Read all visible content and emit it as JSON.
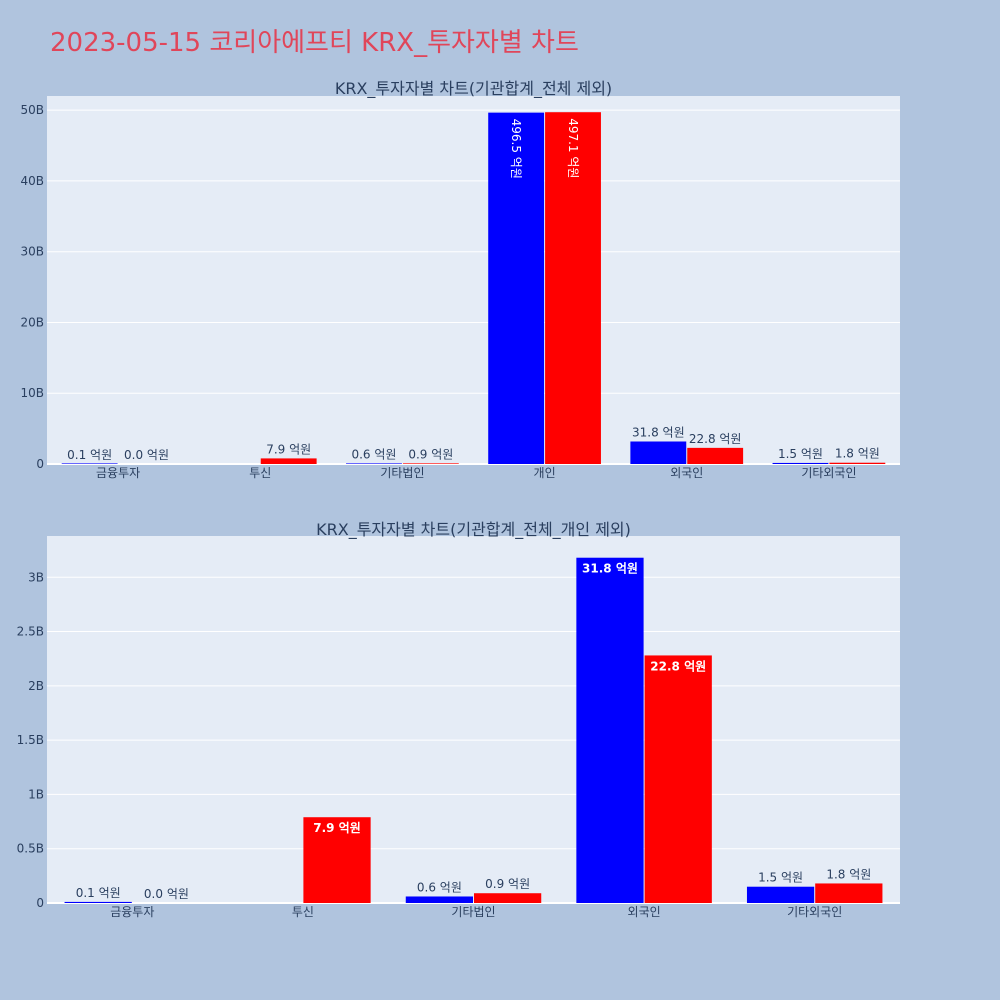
{
  "page_title": "2023-05-15 코리아에프티 KRX_투자자별 차트",
  "colors": {
    "background": "#b0c4de",
    "plot_bg": "#e5ecf6",
    "title_color": "#e0465a",
    "series_a": "#0000ff",
    "series_b": "#ff0000",
    "text": "#2a3f5f",
    "grid": "#ffffff"
  },
  "chart_data": [
    {
      "type": "bar",
      "title": "KRX_투자자별 차트(기관합계_전체 제외)",
      "categories": [
        "금융투자",
        "투신",
        "기타법인",
        "개인",
        "외국인",
        "기타외국인"
      ],
      "series": [
        {
          "values": [
            10000000,
            0,
            60000000,
            49650000000,
            3180000000,
            150000000
          ],
          "labels": [
            "0.1 억원",
            "",
            "0.6 억원",
            "496.5 억원",
            "31.8 억원",
            "1.5 억원"
          ]
        },
        {
          "values": [
            0,
            790000000,
            90000000,
            49710000000,
            2280000000,
            180000000
          ],
          "labels": [
            "0.0 억원",
            "7.9 억원",
            "0.9 억원",
            "497.1 억원",
            "22.8 억원",
            "1.8 억원"
          ]
        }
      ],
      "ylim": [
        0,
        52000000000
      ],
      "yticks": [
        0,
        10000000000,
        20000000000,
        30000000000,
        40000000000,
        50000000000
      ],
      "ytick_labels": [
        "0",
        "10B",
        "20B",
        "30B",
        "40B",
        "50B"
      ],
      "grid": true
    },
    {
      "type": "bar",
      "title": "KRX_투자자별 차트(기관합계_전체_개인 제외)",
      "categories": [
        "금융투자",
        "투신",
        "기타법인",
        "외국인",
        "기타외국인"
      ],
      "series": [
        {
          "values": [
            10000000,
            0,
            60000000,
            3180000000,
            150000000
          ],
          "labels": [
            "0.1 억원",
            "",
            "0.6 억원",
            "31.8 억원",
            "1.5 억원"
          ]
        },
        {
          "values": [
            0,
            790000000,
            90000000,
            2280000000,
            180000000
          ],
          "labels": [
            "0.0 억원",
            "7.9 억원",
            "0.9 억원",
            "22.8 억원",
            "1.8 억원"
          ]
        }
      ],
      "ylim": [
        0,
        3380000000
      ],
      "yticks": [
        0,
        500000000,
        1000000000,
        1500000000,
        2000000000,
        2500000000,
        3000000000
      ],
      "ytick_labels": [
        "0",
        "0.5B",
        "1B",
        "1.5B",
        "2B",
        "2.5B",
        "3B"
      ],
      "grid": true
    }
  ]
}
